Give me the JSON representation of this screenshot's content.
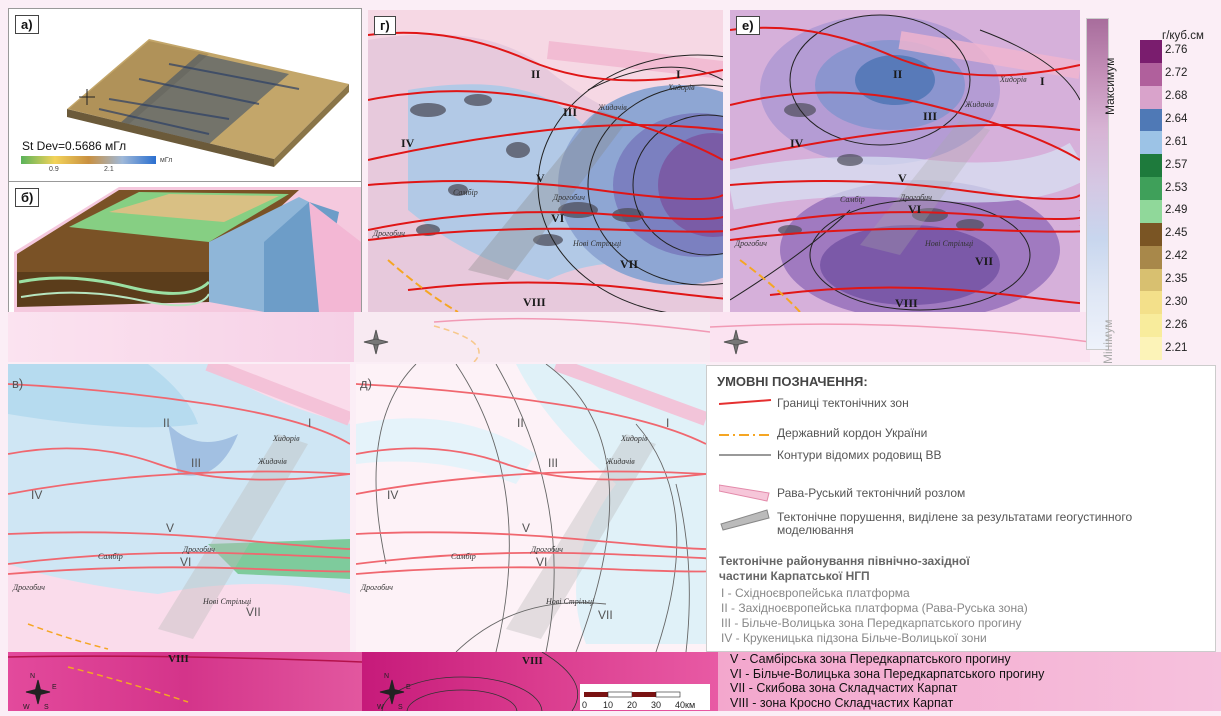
{
  "panels": {
    "a": {
      "label": "а)",
      "stat": "St Dev=0.5686 мГл",
      "unit": "мГл",
      "tick1": "0.9",
      "tick2": "2.1"
    },
    "b": {
      "label": "б)"
    },
    "g": {
      "label": "г)"
    },
    "e": {
      "label": "е)"
    },
    "v": {
      "label": "в)"
    },
    "d": {
      "label": "д)"
    }
  },
  "zones": {
    "I": "I",
    "II": "II",
    "III": "III",
    "IV": "IV",
    "V": "V",
    "VI": "VI",
    "VII": "VII",
    "VIII": "VIII"
  },
  "towns": {
    "t1": "Хидорів",
    "t2": "Жидачів",
    "t3": "Самбір",
    "t4": "Дрогобич",
    "t5": "Дрогобич",
    "t6": "Нові Стрільці"
  },
  "colorbar_left": {
    "top": "Максимум",
    "bottom": "Мінімум"
  },
  "colorbar_right": {
    "unit": "г/куб.см",
    "values": [
      "2.76",
      "2.72",
      "2.68",
      "2.64",
      "2.61",
      "2.57",
      "2.53",
      "2.49",
      "2.45",
      "2.42",
      "2.35",
      "2.30",
      "2.26",
      "2.21"
    ],
    "colors": [
      "#7a1d6e",
      "#b0609c",
      "#d9a3cb",
      "#4f79b6",
      "#9cc3e6",
      "#1e7a3c",
      "#3fa05a",
      "#90d89a",
      "#7a5524",
      "#a8884a",
      "#d8c070",
      "#f3e08a",
      "#f8ec9c",
      "#fcf3b8"
    ]
  },
  "legend": {
    "title": "УМОВНІ ПОЗНАЧЕННЯ:",
    "items": [
      "Границі тектонічних зон",
      "Державний кордон України",
      "Контури відомих родовищ ВВ",
      "Рава-Руський тектонічний розлом",
      "Тектонічне порушення, виділене за результатами геогустинного моделювання"
    ],
    "section_title_1": "Тектонічне районування північно-західної",
    "section_title_2": "частини Карпатської НГП",
    "zones": [
      "I - Східноєвропейська платформа",
      "II - Західноєвропейська платформа (Рава-Руська зона)",
      "III - Більче-Волицька зона Передкарпатського прогину",
      "IV - Крукеницька підзона Більче-Волицької зони"
    ]
  },
  "zones_list_bold": [
    "V - Самбірська зона Передкарпатського прогину",
    "VI - Більче-Волицька зона Передкарпатського прогину",
    "VII - Скибова зона Складчастих Карпат",
    "VIII - зона Кросно Складчастих Карпат"
  ],
  "scalebar": {
    "ticks": [
      "0",
      "10",
      "20",
      "30",
      "40км"
    ]
  },
  "compass": {
    "n": "N",
    "e": "E",
    "s": "S",
    "w": "W"
  }
}
